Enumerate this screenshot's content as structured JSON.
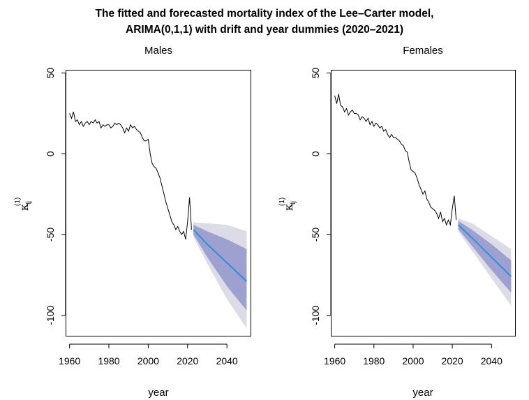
{
  "figure": {
    "title_line1": "The fitted and forecasted mortality index of the Lee–Carter model,",
    "title_line2": "ARIMA(0,1,1) with drift and year dummies (2020–2021)"
  },
  "colors": {
    "history_line": "#000000",
    "forecast_line": "#2a8fe0",
    "pi80_band": "#9ea1cf",
    "pi95_band": "#dcdce6"
  },
  "chart_data": [
    {
      "type": "line",
      "title": "Males",
      "xlabel": "year",
      "ylabel_symbol": "κ",
      "ylabel_subscript": "tj",
      "ylabel_superscript": "(1)",
      "xlim": [
        1958,
        2052
      ],
      "ylim": [
        -117,
        52
      ],
      "xticks": [
        1960,
        1980,
        2000,
        2020,
        2040
      ],
      "yticks": [
        -100,
        -50,
        0,
        50
      ],
      "historical": {
        "x": [
          1960,
          1961,
          1962,
          1963,
          1964,
          1965,
          1966,
          1967,
          1968,
          1969,
          1970,
          1971,
          1972,
          1973,
          1974,
          1975,
          1976,
          1977,
          1978,
          1979,
          1980,
          1981,
          1982,
          1983,
          1984,
          1985,
          1986,
          1987,
          1988,
          1989,
          1990,
          1991,
          1992,
          1993,
          1994,
          1995,
          1996,
          1997,
          1998,
          1999,
          2000,
          2001,
          2002,
          2003,
          2004,
          2005,
          2006,
          2007,
          2008,
          2009,
          2010,
          2011,
          2012,
          2013,
          2014,
          2015,
          2016,
          2017,
          2018,
          2019,
          2020,
          2021,
          2022
        ],
        "y": [
          25,
          22,
          26,
          20,
          21,
          18,
          20,
          17,
          19,
          20,
          18,
          20,
          19,
          21,
          19,
          20,
          16,
          18,
          17,
          18,
          18,
          16,
          17,
          19,
          18,
          19,
          18,
          16,
          13,
          16,
          14,
          18,
          16,
          17,
          15,
          14,
          13,
          10,
          8,
          8,
          9,
          0,
          -6,
          -8,
          -9,
          -12,
          -15,
          -20,
          -25,
          -30,
          -34,
          -38,
          -42,
          -44,
          -47,
          -45,
          -48,
          -50,
          -48,
          -53,
          -42,
          -27,
          -47
        ]
      },
      "forecast": {
        "x": [
          2023,
          2030,
          2040,
          2050
        ],
        "mean": [
          -47,
          -56,
          -67.5,
          -79
        ],
        "lo80": [
          -50,
          -64,
          -82,
          -97
        ],
        "hi80": [
          -44,
          -48,
          -53,
          -59
        ],
        "lo95": [
          -51.5,
          -68,
          -90,
          -108
        ],
        "hi95": [
          -42.5,
          -43,
          -44,
          -48
        ]
      }
    },
    {
      "type": "line",
      "title": "Females",
      "xlabel": "year",
      "ylabel_symbol": "κ",
      "ylabel_subscript": "tj",
      "ylabel_superscript": "(1)",
      "xlim": [
        1958,
        2052
      ],
      "ylim": [
        -117,
        52
      ],
      "xticks": [
        1960,
        1980,
        2000,
        2020,
        2040
      ],
      "yticks": [
        -100,
        -50,
        0,
        50
      ],
      "historical": {
        "x": [
          1960,
          1961,
          1962,
          1963,
          1964,
          1965,
          1966,
          1967,
          1968,
          1969,
          1970,
          1971,
          1972,
          1973,
          1974,
          1975,
          1976,
          1977,
          1978,
          1979,
          1980,
          1981,
          1982,
          1983,
          1984,
          1985,
          1986,
          1987,
          1988,
          1989,
          1990,
          1991,
          1992,
          1993,
          1994,
          1995,
          1996,
          1997,
          1998,
          1999,
          2000,
          2001,
          2002,
          2003,
          2004,
          2005,
          2006,
          2007,
          2008,
          2009,
          2010,
          2011,
          2012,
          2013,
          2014,
          2015,
          2016,
          2017,
          2018,
          2019,
          2020,
          2021,
          2022
        ],
        "y": [
          36,
          31,
          37,
          30,
          29,
          26,
          28,
          24,
          26,
          27,
          25,
          25,
          24,
          21,
          23,
          22,
          20,
          22,
          18,
          20,
          17,
          19,
          18,
          16,
          17,
          14,
          15,
          12,
          10,
          12,
          10,
          10,
          9,
          8,
          6,
          5,
          2,
          1,
          -5,
          -10,
          -11,
          -12,
          -15,
          -19,
          -22,
          -25,
          -23,
          -28,
          -30,
          -33,
          -34,
          -35,
          -37,
          -40,
          -36,
          -42,
          -40,
          -44,
          -41,
          -44,
          -34,
          -26,
          -41
        ]
      },
      "forecast": {
        "x": [
          2023,
          2030,
          2040,
          2050
        ],
        "mean": [
          -44,
          -52,
          -64,
          -76
        ],
        "lo80": [
          -46.5,
          -57,
          -72,
          -86
        ],
        "hi80": [
          -41.5,
          -47,
          -56,
          -66
        ],
        "lo95": [
          -48,
          -60,
          -77,
          -94
        ],
        "hi95": [
          -40,
          -43,
          -51,
          -59
        ]
      }
    }
  ]
}
